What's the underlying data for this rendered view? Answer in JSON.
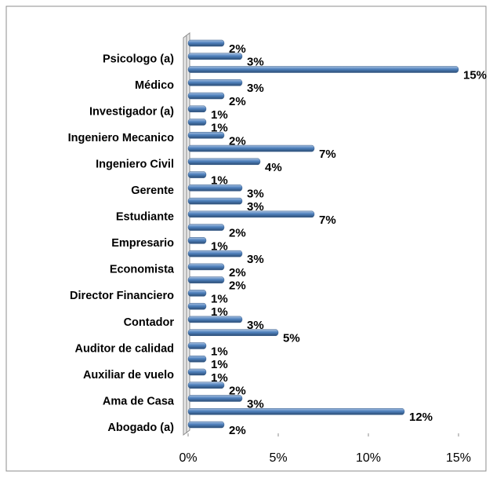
{
  "chart_data": {
    "type": "bar",
    "orientation": "horizontal",
    "categories": [
      "Abogado (a)",
      null,
      "Ama de Casa",
      null,
      "Auxiliar de vuelo",
      null,
      "Auditor de calidad",
      null,
      "Contador",
      null,
      "Director Financiero",
      null,
      "Economista",
      null,
      "Empresario",
      null,
      "Estudiante",
      null,
      "Gerente",
      null,
      "Ingeniero Civil",
      null,
      "Ingeniero Mecanico",
      null,
      "Investigador (a)",
      null,
      "Médico",
      null,
      "Psicologo (a)",
      null
    ],
    "values": [
      2,
      12,
      3,
      2,
      1,
      1,
      1,
      5,
      3,
      1,
      1,
      2,
      2,
      3,
      1,
      2,
      7,
      3,
      3,
      1,
      4,
      7,
      2,
      1,
      1,
      2,
      3,
      15,
      3,
      2
    ],
    "value_labels": [
      "2%",
      "12%",
      "3%",
      "2%",
      "1%",
      "1%",
      "1%",
      "5%",
      "3%",
      "1%",
      "1%",
      "2%",
      "2%",
      "3%",
      "1%",
      "2%",
      "7%",
      "3%",
      "3%",
      "1%",
      "4%",
      "7%",
      "2%",
      "1%",
      "1%",
      "2%",
      "3%",
      "15%",
      "3%",
      "2%"
    ],
    "color": "#4f81bd",
    "xlim": [
      0,
      15
    ],
    "xticks": [
      {
        "value": 0,
        "label": "0%"
      },
      {
        "value": 5,
        "label": "5%"
      },
      {
        "value": 10,
        "label": "10%"
      },
      {
        "value": 15,
        "label": "15%"
      }
    ],
    "grid": false
  }
}
